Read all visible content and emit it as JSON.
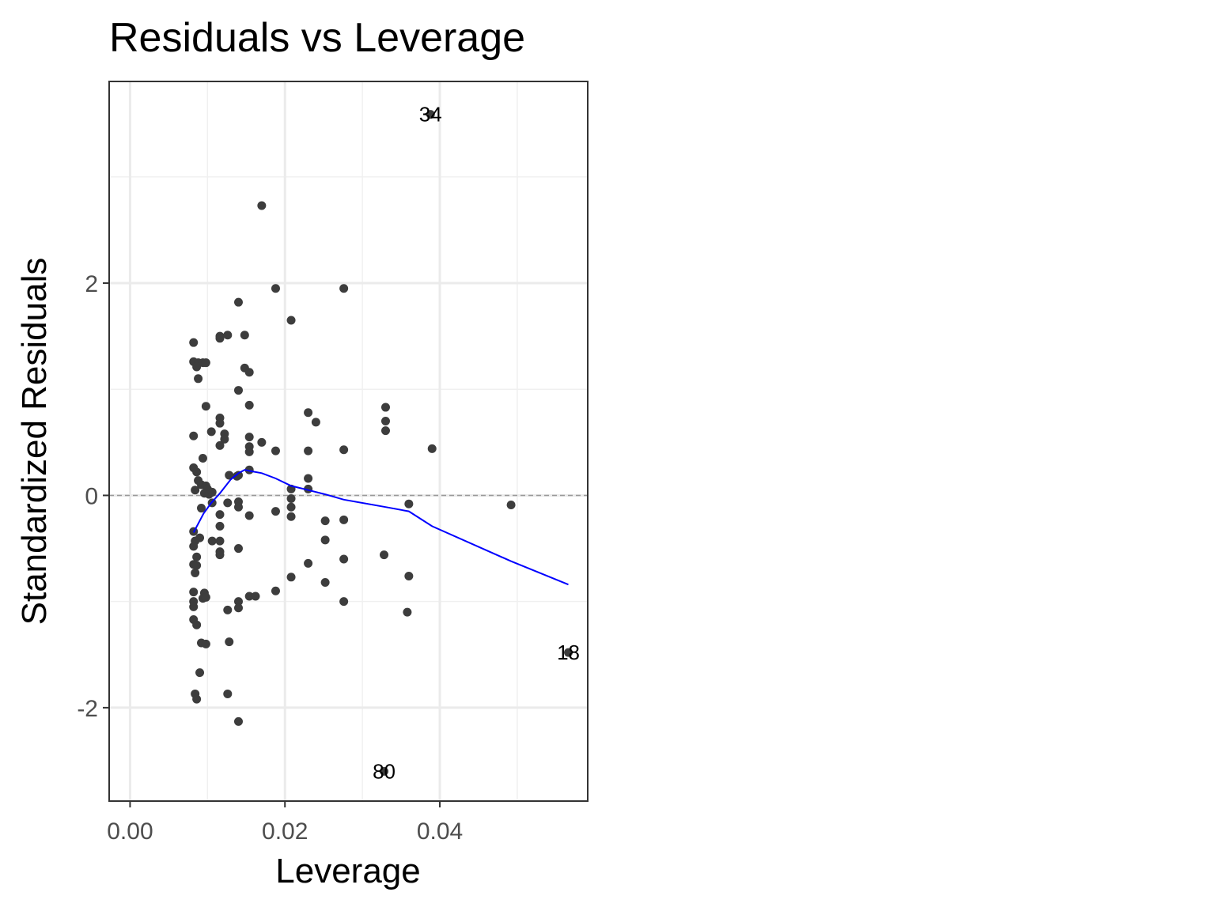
{
  "chart_data": {
    "type": "scatter",
    "title": "Residuals vs Leverage",
    "xlabel": "Leverage",
    "ylabel": "Standardized Residuals",
    "xlim": [
      -0.0027,
      0.0591
    ],
    "ylim": [
      -2.88,
      3.9
    ],
    "x_ticks": [
      0.0,
      0.02,
      0.04
    ],
    "x_tick_labels": [
      "0.00",
      "0.02",
      "0.04"
    ],
    "y_ticks": [
      -2,
      0,
      2
    ],
    "y_tick_labels": [
      "-2",
      "0",
      "2"
    ],
    "grid": true,
    "reference_line": {
      "y": 0,
      "style": "dashed",
      "color": "#999999"
    },
    "point_color": "#3d3d3d",
    "smooth_color": "#0000ff",
    "points": [
      {
        "x": 0.0082,
        "y": 1.44
      },
      {
        "x": 0.0082,
        "y": 1.26
      },
      {
        "x": 0.0088,
        "y": 1.25
      },
      {
        "x": 0.0094,
        "y": 1.25
      },
      {
        "x": 0.0098,
        "y": 1.25
      },
      {
        "x": 0.0086,
        "y": 1.21
      },
      {
        "x": 0.0088,
        "y": 1.1
      },
      {
        "x": 0.0098,
        "y": 0.84
      },
      {
        "x": 0.0082,
        "y": 0.56
      },
      {
        "x": 0.0105,
        "y": 0.6
      },
      {
        "x": 0.0094,
        "y": 0.35
      },
      {
        "x": 0.0082,
        "y": 0.26
      },
      {
        "x": 0.0086,
        "y": 0.22
      },
      {
        "x": 0.0088,
        "y": 0.14
      },
      {
        "x": 0.0092,
        "y": 0.1
      },
      {
        "x": 0.0098,
        "y": 0.09
      },
      {
        "x": 0.01,
        "y": 0.06
      },
      {
        "x": 0.0084,
        "y": 0.05
      },
      {
        "x": 0.0096,
        "y": 0.02
      },
      {
        "x": 0.0102,
        "y": 0.01
      },
      {
        "x": 0.0106,
        "y": 0.03
      },
      {
        "x": 0.0092,
        "y": -0.12
      },
      {
        "x": 0.0106,
        "y": -0.07
      },
      {
        "x": 0.0082,
        "y": -0.34
      },
      {
        "x": 0.009,
        "y": -0.4
      },
      {
        "x": 0.0084,
        "y": -0.43
      },
      {
        "x": 0.0082,
        "y": -0.48
      },
      {
        "x": 0.0086,
        "y": -0.58
      },
      {
        "x": 0.0082,
        "y": -0.65
      },
      {
        "x": 0.0086,
        "y": -0.66
      },
      {
        "x": 0.0084,
        "y": -0.73
      },
      {
        "x": 0.0082,
        "y": -0.91
      },
      {
        "x": 0.0096,
        "y": -0.92
      },
      {
        "x": 0.0094,
        "y": -0.97
      },
      {
        "x": 0.0098,
        "y": -0.96
      },
      {
        "x": 0.0082,
        "y": -1.0
      },
      {
        "x": 0.0082,
        "y": -1.05
      },
      {
        "x": 0.0082,
        "y": -1.17
      },
      {
        "x": 0.0086,
        "y": -1.22
      },
      {
        "x": 0.0092,
        "y": -1.39
      },
      {
        "x": 0.0098,
        "y": -1.4
      },
      {
        "x": 0.009,
        "y": -1.67
      },
      {
        "x": 0.0084,
        "y": -1.87
      },
      {
        "x": 0.0086,
        "y": -1.92
      },
      {
        "x": 0.0106,
        "y": -0.43
      },
      {
        "x": 0.0116,
        "y": 1.5
      },
      {
        "x": 0.0116,
        "y": 1.48
      },
      {
        "x": 0.0126,
        "y": 1.51
      },
      {
        "x": 0.0116,
        "y": 0.73
      },
      {
        "x": 0.0116,
        "y": 0.68
      },
      {
        "x": 0.0122,
        "y": 0.58
      },
      {
        "x": 0.0122,
        "y": 0.53
      },
      {
        "x": 0.0116,
        "y": 0.47
      },
      {
        "x": 0.0128,
        "y": 0.19
      },
      {
        "x": 0.0116,
        "y": -0.18
      },
      {
        "x": 0.0116,
        "y": -0.29
      },
      {
        "x": 0.0126,
        "y": -0.07
      },
      {
        "x": 0.0116,
        "y": -0.43
      },
      {
        "x": 0.0116,
        "y": -0.53
      },
      {
        "x": 0.0116,
        "y": -0.56
      },
      {
        "x": 0.0126,
        "y": -1.08
      },
      {
        "x": 0.0128,
        "y": -1.38
      },
      {
        "x": 0.0126,
        "y": -1.87
      },
      {
        "x": 0.014,
        "y": 1.82
      },
      {
        "x": 0.0148,
        "y": 1.51
      },
      {
        "x": 0.0148,
        "y": 1.2
      },
      {
        "x": 0.0154,
        "y": 1.16
      },
      {
        "x": 0.014,
        "y": 0.99
      },
      {
        "x": 0.0154,
        "y": 0.85
      },
      {
        "x": 0.0154,
        "y": 0.55
      },
      {
        "x": 0.0154,
        "y": 0.46
      },
      {
        "x": 0.0154,
        "y": 0.41
      },
      {
        "x": 0.0154,
        "y": 0.24
      },
      {
        "x": 0.014,
        "y": 0.19
      },
      {
        "x": 0.0138,
        "y": 0.18
      },
      {
        "x": 0.014,
        "y": -0.06
      },
      {
        "x": 0.014,
        "y": -0.11
      },
      {
        "x": 0.0154,
        "y": -0.19
      },
      {
        "x": 0.014,
        "y": -0.5
      },
      {
        "x": 0.0154,
        "y": -0.95
      },
      {
        "x": 0.0162,
        "y": -0.95
      },
      {
        "x": 0.014,
        "y": -1.0
      },
      {
        "x": 0.014,
        "y": -1.06
      },
      {
        "x": 0.014,
        "y": -2.13
      },
      {
        "x": 0.017,
        "y": 2.73
      },
      {
        "x": 0.017,
        "y": 0.5
      },
      {
        "x": 0.0188,
        "y": 1.95
      },
      {
        "x": 0.0188,
        "y": 0.42
      },
      {
        "x": 0.0188,
        "y": -0.15
      },
      {
        "x": 0.0188,
        "y": -0.9
      },
      {
        "x": 0.0208,
        "y": 1.65
      },
      {
        "x": 0.0208,
        "y": 0.06
      },
      {
        "x": 0.0208,
        "y": -0.03
      },
      {
        "x": 0.0208,
        "y": -0.11
      },
      {
        "x": 0.0208,
        "y": -0.2
      },
      {
        "x": 0.0208,
        "y": -0.77
      },
      {
        "x": 0.023,
        "y": 0.78
      },
      {
        "x": 0.023,
        "y": 0.42
      },
      {
        "x": 0.023,
        "y": 0.16
      },
      {
        "x": 0.023,
        "y": 0.06
      },
      {
        "x": 0.023,
        "y": -0.64
      },
      {
        "x": 0.024,
        "y": 0.69
      },
      {
        "x": 0.0252,
        "y": -0.24
      },
      {
        "x": 0.0252,
        "y": -0.42
      },
      {
        "x": 0.0252,
        "y": -0.82
      },
      {
        "x": 0.0276,
        "y": 1.95
      },
      {
        "x": 0.0276,
        "y": 0.43
      },
      {
        "x": 0.0276,
        "y": -0.23
      },
      {
        "x": 0.0276,
        "y": -0.6
      },
      {
        "x": 0.0276,
        "y": -1.0
      },
      {
        "x": 0.033,
        "y": 0.83
      },
      {
        "x": 0.033,
        "y": 0.7
      },
      {
        "x": 0.033,
        "y": 0.61
      },
      {
        "x": 0.0328,
        "y": -0.56
      },
      {
        "x": 0.036,
        "y": -0.08
      },
      {
        "x": 0.036,
        "y": -0.76
      },
      {
        "x": 0.0358,
        "y": -1.1
      },
      {
        "x": 0.039,
        "y": 0.44
      },
      {
        "x": 0.0492,
        "y": -0.09
      },
      {
        "x": 0.0388,
        "y": 3.59
      },
      {
        "x": 0.0566,
        "y": -1.48
      },
      {
        "x": 0.0328,
        "y": -2.6
      }
    ],
    "labeled_points": [
      {
        "label": "34",
        "x": 0.0388,
        "y": 3.59
      },
      {
        "label": "18",
        "x": 0.0566,
        "y": -1.48
      },
      {
        "label": "80",
        "x": 0.0328,
        "y": -2.6
      }
    ],
    "smooth_line": [
      {
        "x": 0.0082,
        "y": -0.35
      },
      {
        "x": 0.0095,
        "y": -0.17
      },
      {
        "x": 0.0105,
        "y": -0.07
      },
      {
        "x": 0.0116,
        "y": 0.02
      },
      {
        "x": 0.013,
        "y": 0.15
      },
      {
        "x": 0.014,
        "y": 0.21
      },
      {
        "x": 0.0148,
        "y": 0.24
      },
      {
        "x": 0.0155,
        "y": 0.23
      },
      {
        "x": 0.017,
        "y": 0.21
      },
      {
        "x": 0.0188,
        "y": 0.16
      },
      {
        "x": 0.0208,
        "y": 0.09
      },
      {
        "x": 0.023,
        "y": 0.05
      },
      {
        "x": 0.0252,
        "y": 0.01
      },
      {
        "x": 0.0276,
        "y": -0.04
      },
      {
        "x": 0.033,
        "y": -0.11
      },
      {
        "x": 0.036,
        "y": -0.15
      },
      {
        "x": 0.039,
        "y": -0.29
      },
      {
        "x": 0.0492,
        "y": -0.62
      },
      {
        "x": 0.0566,
        "y": -0.84
      }
    ]
  }
}
